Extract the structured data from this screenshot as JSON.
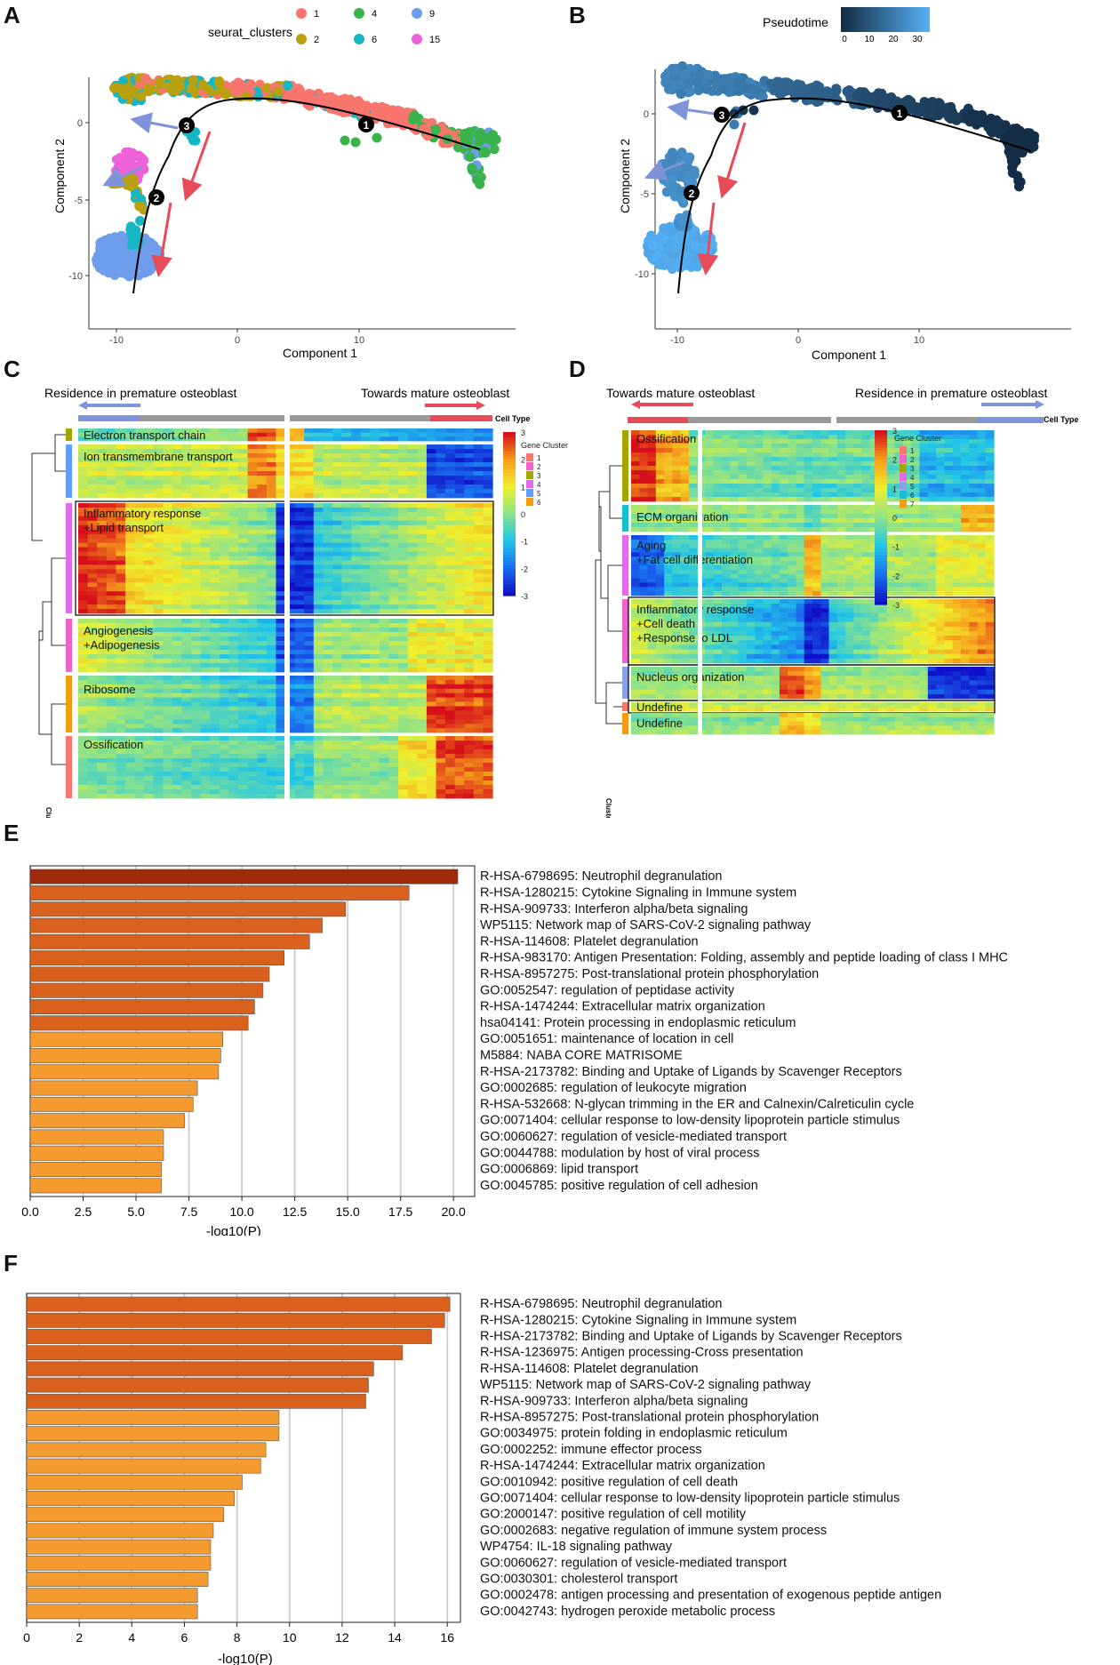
{
  "panels": {
    "a": {
      "letter": "A",
      "legend_title": "seurat_clusters",
      "legend_items": [
        {
          "label": "1",
          "color": "#F8766D"
        },
        {
          "label": "4",
          "color": "#39B34A"
        },
        {
          "label": "9",
          "color": "#6E9DEB"
        },
        {
          "label": "2",
          "color": "#B8A00F"
        },
        {
          "label": "6",
          "color": "#16B7C2"
        },
        {
          "label": "15",
          "color": "#EE62D8"
        }
      ],
      "xlabel": "Component 1",
      "ylabel": "Component 2",
      "xticks": [
        "-10",
        "0",
        "10"
      ],
      "yticks": [
        "0",
        "-5",
        "-10"
      ],
      "nodes": [
        "1",
        "2",
        "3"
      ]
    },
    "b": {
      "letter": "B",
      "legend_title": "Pseudotime",
      "legend_ticks": [
        "0",
        "10",
        "20",
        "30"
      ],
      "xlabel": "Component 1",
      "ylabel": "Component 2",
      "xticks": [
        "-10",
        "0",
        "10"
      ],
      "yticks": [
        "0",
        "-5",
        "-10"
      ],
      "nodes": [
        "1",
        "2",
        "3"
      ]
    },
    "c": {
      "letter": "C",
      "left_label": "Residence in premature osteoblast",
      "right_label": "Towards mature osteoblast",
      "cell_type": "Cell Type",
      "gene_cluster": "Gene Cluster",
      "cluster_label": "Cluster",
      "scale_ticks": [
        "3",
        "2",
        "1",
        "0",
        "-1",
        "-2",
        "-3"
      ],
      "gene_clusters": [
        {
          "label": "1",
          "color": "#F8766D"
        },
        {
          "label": "2",
          "color": "#F062C8"
        },
        {
          "label": "3",
          "color": "#A3A500"
        },
        {
          "label": "4",
          "color": "#E36BEB"
        },
        {
          "label": "5",
          "color": "#619CFF"
        },
        {
          "label": "6",
          "color": "#F39C12"
        }
      ],
      "modules": [
        "Electron transport chain",
        "Ion transmembrane transport",
        "Inflammatory response\n+Lipid transport",
        "Angiogenesis\n+Adipogenesis",
        "Ribosome",
        "Ossification"
      ]
    },
    "d": {
      "letter": "D",
      "left_label": "Towards mature osteoblast",
      "right_label": "Residence in premature osteoblast",
      "cell_type": "Cell Type",
      "gene_cluster": "Gene Cluster",
      "cluster_label": "Cluster",
      "scale_ticks": [
        "3",
        "2",
        "1",
        "0",
        "-1",
        "-2",
        "-3"
      ],
      "gene_clusters": [
        {
          "label": "1",
          "color": "#F8766D"
        },
        {
          "label": "2",
          "color": "#F062C8"
        },
        {
          "label": "3",
          "color": "#A3A500"
        },
        {
          "label": "4",
          "color": "#E36BEB"
        },
        {
          "label": "5",
          "color": "#8B9FE8"
        },
        {
          "label": "6",
          "color": "#17BECF"
        },
        {
          "label": "7",
          "color": "#F39C12"
        }
      ],
      "modules": [
        "Ossification",
        "ECM organization",
        "Aging\n+Fat cell differentiation",
        "Inflammatory response\n+Cell death\n+Response to LDL",
        "Nucleus organization",
        "Undefine",
        "Undefine"
      ]
    },
    "e": {
      "letter": "E",
      "xlabel": "-log10(P)"
    },
    "f": {
      "letter": "F",
      "xlabel": "-log10(P)"
    }
  },
  "chart_data": [
    {
      "panel": "E",
      "type": "bar",
      "orientation": "horizontal",
      "xlabel": "-log10(P)",
      "xlim": [
        0,
        21
      ],
      "xticks": [
        "0.0",
        "2.5",
        "5.0",
        "7.5",
        "10.0",
        "12.5",
        "15.0",
        "17.5",
        "20.0"
      ],
      "categories": [
        "R-HSA-6798695: Neutrophil degranulation",
        "R-HSA-1280215: Cytokine Signaling in Immune system",
        "R-HSA-909733: Interferon alpha/beta signaling",
        "WP5115: Network map of SARS-CoV-2 signaling pathway",
        "R-HSA-114608: Platelet degranulation",
        "R-HSA-983170: Antigen Presentation: Folding, assembly and peptide loading of class I MHC",
        "R-HSA-8957275: Post-translational protein phosphorylation",
        "GO:0052547: regulation of peptidase activity",
        "R-HSA-1474244: Extracellular matrix organization",
        "hsa04141: Protein processing in endoplasmic reticulum",
        "GO:0051651: maintenance of location in cell",
        "M5884: NABA CORE MATRISOME",
        "R-HSA-2173782: Binding and Uptake of Ligands by Scavenger Receptors",
        "GO:0002685: regulation of leukocyte migration",
        "R-HSA-532668: N-glycan trimming in the ER and Calnexin/Calreticulin cycle",
        "GO:0071404: cellular response to low-density lipoprotein particle stimulus",
        "GO:0060627: regulation of vesicle-mediated transport",
        "GO:0044788: modulation by host of viral process",
        "GO:0006869: lipid transport",
        "GO:0045785: positive regulation of cell adhesion"
      ],
      "values": [
        20.2,
        17.9,
        14.9,
        13.8,
        13.2,
        12.0,
        11.3,
        11.0,
        10.6,
        10.3,
        9.1,
        9.0,
        8.9,
        7.9,
        7.7,
        7.3,
        6.3,
        6.3,
        6.2,
        6.2
      ],
      "colors": [
        "#9E2A0A",
        "#D9601D",
        "#D9601D",
        "#D9601D",
        "#D9601D",
        "#D9601D",
        "#D9601D",
        "#D9601D",
        "#D9601D",
        "#D9601D",
        "#F59A2E",
        "#F59A2E",
        "#F59A2E",
        "#F59A2E",
        "#F59A2E",
        "#F59A2E",
        "#F59A2E",
        "#F59A2E",
        "#F59A2E",
        "#F59A2E"
      ]
    },
    {
      "panel": "F",
      "type": "bar",
      "orientation": "horizontal",
      "xlabel": "-log10(P)",
      "xlim": [
        0,
        16.5
      ],
      "xticks": [
        "0",
        "2",
        "4",
        "6",
        "8",
        "10",
        "12",
        "14",
        "16"
      ],
      "categories": [
        "R-HSA-6798695: Neutrophil degranulation",
        "R-HSA-1280215: Cytokine Signaling in Immune system",
        "R-HSA-2173782: Binding and Uptake of Ligands by Scavenger Receptors",
        "R-HSA-1236975: Antigen processing-Cross presentation",
        "R-HSA-114608: Platelet degranulation",
        "WP5115: Network map of SARS-CoV-2 signaling pathway",
        "R-HSA-909733: Interferon alpha/beta signaling",
        "R-HSA-8957275: Post-translational protein phosphorylation",
        "GO:0034975: protein folding in endoplasmic reticulum",
        "GO:0002252: immune effector process",
        "R-HSA-1474244: Extracellular matrix organization",
        "GO:0010942: positive regulation of cell death",
        "GO:0071404: cellular response to low-density lipoprotein particle stimulus",
        "GO:2000147: positive regulation of cell motility",
        "GO:0002683: negative regulation of immune system process",
        "WP4754: IL-18 signaling pathway",
        "GO:0060627: regulation of vesicle-mediated transport",
        "GO:0030301: cholesterol transport",
        "GO:0002478: antigen processing and presentation of exogenous peptide antigen",
        "GO:0042743: hydrogen peroxide metabolic process"
      ],
      "values": [
        16.1,
        15.9,
        15.4,
        14.3,
        13.2,
        13.0,
        12.9,
        9.6,
        9.6,
        9.1,
        8.9,
        8.2,
        7.9,
        7.5,
        7.1,
        7.0,
        7.0,
        6.9,
        6.5,
        6.5
      ],
      "colors": [
        "#D9601D",
        "#D9601D",
        "#D9601D",
        "#D9601D",
        "#D9601D",
        "#D9601D",
        "#D9601D",
        "#F59A2E",
        "#F59A2E",
        "#F59A2E",
        "#F59A2E",
        "#F59A2E",
        "#F59A2E",
        "#F59A2E",
        "#F59A2E",
        "#F59A2E",
        "#F59A2E",
        "#F59A2E",
        "#F59A2E",
        "#F59A2E"
      ]
    }
  ]
}
